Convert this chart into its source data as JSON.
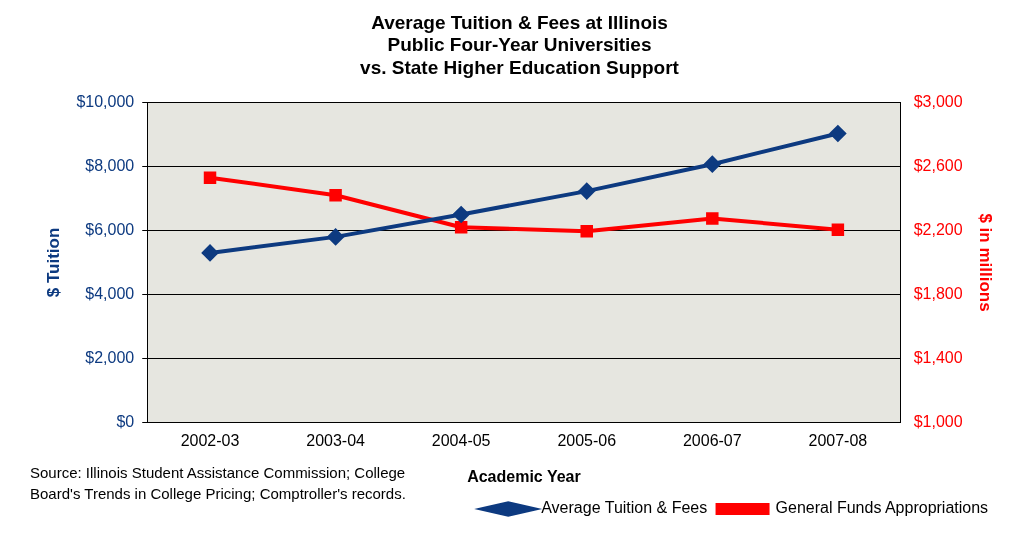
{
  "chart_data": {
    "type": "line",
    "title": [
      "Average Tuition & Fees at Illinois",
      "Public Four-Year Universities",
      "vs. State Higher Education Support"
    ],
    "xlabel": "Academic Year",
    "ylabel": "$ Tuition",
    "y2label": "$ in millions",
    "categories": [
      "2002-03",
      "2003-04",
      "2004-05",
      "2005-06",
      "2006-07",
      "2007-08"
    ],
    "series": [
      {
        "name": "Average Tuition & Fees",
        "color": "#0d3a80",
        "marker": "diamond",
        "values": [
          5300,
          5800,
          6500,
          7230,
          8070,
          9030
        ]
      },
      {
        "name": "General Funds Appropriations",
        "color": "#ff0000",
        "marker": "square",
        "axis": "y2",
        "values": [
          2530,
          2420,
          2220,
          2195,
          2275,
          2205
        ]
      }
    ],
    "ylim": [
      0,
      10000
    ],
    "yticks": [
      {
        "value": 0,
        "label": "$0"
      },
      {
        "value": 2000,
        "label": "$2,000"
      },
      {
        "value": 4000,
        "label": "$4,000"
      },
      {
        "value": 6000,
        "label": "$6,000"
      },
      {
        "value": 8000,
        "label": "$8,000"
      },
      {
        "value": 10000,
        "label": "$10,000"
      }
    ],
    "y2lim": [
      1000,
      3000
    ],
    "y2ticks": [
      {
        "value": 1000,
        "label": "$1,000"
      },
      {
        "value": 1400,
        "label": "$1,400"
      },
      {
        "value": 1800,
        "label": "$1,800"
      },
      {
        "value": 2200,
        "label": "$2,200"
      },
      {
        "value": 2600,
        "label": "$2,600"
      },
      {
        "value": 3000,
        "label": "$3,000"
      }
    ],
    "grid": "y",
    "legend": "bottom right",
    "annotations": [
      "Source: Illinois Student Assistance Commission; College Board's Trends in College Pricing; Comptroller's records."
    ]
  }
}
